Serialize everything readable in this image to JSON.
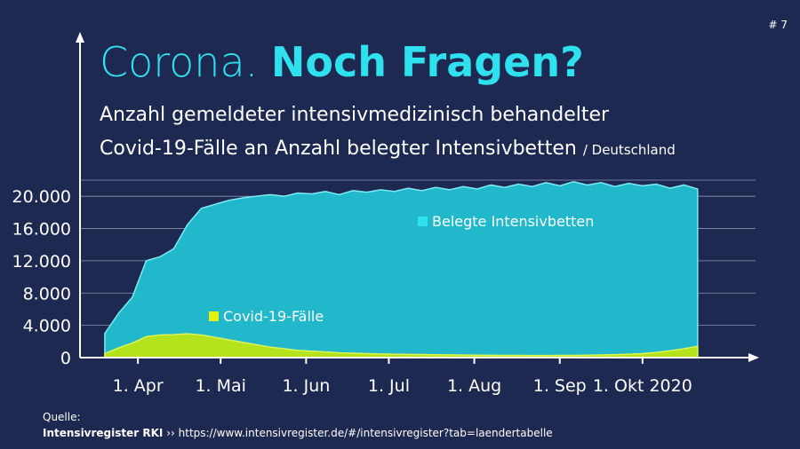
{
  "page_number": "# 7",
  "chart_data": {
    "type": "area",
    "title": "Corona.",
    "title_bold": "Noch Fragen?",
    "subtitle_lines": [
      "Anzahl gemeldeter intensivmedizinisch behandelter",
      "Covid-19-Fälle an Anzahl belegter Intensivbetten"
    ],
    "region": "/ Deutschland",
    "x": [
      "2020-03-20",
      "2020-03-25",
      "2020-03-30",
      "2020-04-04",
      "2020-04-09",
      "2020-04-14",
      "2020-04-19",
      "2020-04-24",
      "2020-04-29",
      "2020-05-04",
      "2020-05-09",
      "2020-05-14",
      "2020-05-19",
      "2020-05-24",
      "2020-05-29",
      "2020-06-03",
      "2020-06-08",
      "2020-06-13",
      "2020-06-18",
      "2020-06-23",
      "2020-06-28",
      "2020-07-03",
      "2020-07-08",
      "2020-07-13",
      "2020-07-18",
      "2020-07-23",
      "2020-07-28",
      "2020-08-02",
      "2020-08-07",
      "2020-08-12",
      "2020-08-17",
      "2020-08-22",
      "2020-08-27",
      "2020-09-01",
      "2020-09-06",
      "2020-09-11",
      "2020-09-16",
      "2020-09-21",
      "2020-09-26",
      "2020-10-01",
      "2020-10-06",
      "2020-10-11",
      "2020-10-16",
      "2020-10-21"
    ],
    "series": [
      {
        "name": "Belegte Intensivbetten",
        "color": "#22b8cc",
        "values": [
          3000,
          5500,
          7500,
          12000,
          12500,
          13500,
          16500,
          18500,
          19000,
          19500,
          19800,
          20000,
          20200,
          20000,
          20400,
          20300,
          20600,
          20200,
          20700,
          20500,
          20800,
          20600,
          21000,
          20700,
          21100,
          20800,
          21200,
          20900,
          21400,
          21100,
          21500,
          21200,
          21700,
          21300,
          21800,
          21400,
          21700,
          21200,
          21600,
          21300,
          21500,
          21000,
          21400,
          20900
        ]
      },
      {
        "name": "Covid-19-Fälle",
        "color": "#b4e31e",
        "values": [
          500,
          1200,
          1800,
          2600,
          2800,
          2850,
          2950,
          2800,
          2500,
          2200,
          1900,
          1600,
          1300,
          1100,
          900,
          800,
          700,
          600,
          550,
          500,
          450,
          420,
          400,
          380,
          360,
          340,
          320,
          300,
          290,
          280,
          270,
          260,
          260,
          270,
          280,
          300,
          330,
          370,
          420,
          500,
          650,
          850,
          1100,
          1400
        ]
      }
    ],
    "xlim": [
      "2020-03-11",
      "2020-11-11"
    ],
    "xticks": [
      {
        "value": "2020-04-01",
        "label": "1. Apr"
      },
      {
        "value": "2020-05-01",
        "label": "1. Mai"
      },
      {
        "value": "2020-06-01",
        "label": "1. Jun"
      },
      {
        "value": "2020-07-01",
        "label": "1. Jul"
      },
      {
        "value": "2020-08-01",
        "label": "1. Aug"
      },
      {
        "value": "2020-09-01",
        "label": "1. Sep"
      },
      {
        "value": "2020-10-01",
        "label": "1. Okt 2020"
      }
    ],
    "ylim": [
      0,
      22000
    ],
    "yticks": [
      0,
      {
        "value": 4000,
        "label": "4.000"
      },
      {
        "value": 8000,
        "label": "8.000"
      },
      {
        "value": 12000,
        "label": "12.000"
      },
      {
        "value": 16000,
        "label": "16.000"
      },
      {
        "value": 20000,
        "label": "20.000"
      }
    ],
    "grid": true
  },
  "source": {
    "label": "Quelle:",
    "name": "Intensivregister RKI",
    "url": "›› https://www.intensivregister.de/#/intensivregister?tab=laendertabelle"
  }
}
